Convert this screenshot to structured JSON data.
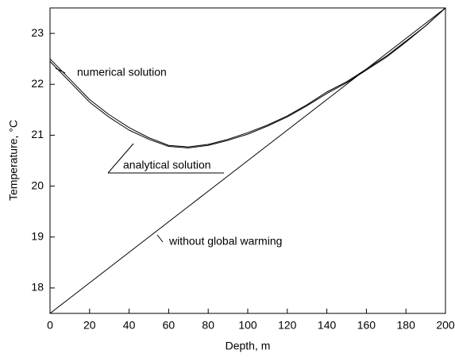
{
  "chart_data": {
    "type": "line",
    "x_label": "Depth, m",
    "y_label": "Temperature, °C",
    "x": [
      0,
      10,
      20,
      30,
      40,
      50,
      60,
      70,
      80,
      90,
      100,
      110,
      120,
      130,
      140,
      150,
      160,
      170,
      180,
      190,
      200
    ],
    "series": [
      {
        "name": "numerical solution",
        "color": "#000000",
        "values": [
          22.5,
          22.1,
          21.7,
          21.4,
          21.15,
          20.95,
          20.8,
          20.77,
          20.82,
          20.92,
          21.05,
          21.2,
          21.38,
          21.6,
          21.85,
          22.05,
          22.3,
          22.55,
          22.85,
          23.15,
          23.5
        ]
      },
      {
        "name": "analytical solution",
        "color": "#000000",
        "values": [
          22.45,
          22.05,
          21.65,
          21.35,
          21.1,
          20.92,
          20.78,
          20.75,
          20.8,
          20.9,
          21.02,
          21.18,
          21.36,
          21.58,
          21.82,
          22.03,
          22.28,
          22.53,
          22.83,
          23.15,
          23.5
        ]
      },
      {
        "name": "without global warming",
        "color": "#000000",
        "values": [
          17.5,
          17.8,
          18.1,
          18.4,
          18.7,
          19.0,
          19.3,
          19.6,
          19.9,
          20.2,
          20.5,
          20.8,
          21.1,
          21.4,
          21.7,
          22.0,
          22.3,
          22.6,
          22.9,
          23.2,
          23.5
        ]
      }
    ],
    "xlim": [
      0,
      200
    ],
    "ylim": [
      17.5,
      23.5
    ],
    "xticks": [
      0,
      20,
      40,
      60,
      80,
      100,
      120,
      140,
      160,
      180,
      200
    ],
    "yticks": [
      18,
      19,
      20,
      21,
      22,
      23
    ]
  }
}
